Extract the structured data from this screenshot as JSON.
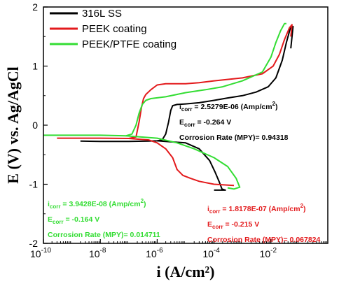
{
  "chart_data": {
    "type": "line",
    "xlabel": "i (A/cm²)",
    "ylabel": "E (V) vs. Ag/AgCl",
    "xscale": "log",
    "xlim": [
      1e-10,
      1
    ],
    "ylim": [
      -2,
      2
    ],
    "x_ticks": [
      {
        "value": 1e-10,
        "label": "10-10"
      },
      {
        "value": 1e-08,
        "label": "10-8"
      },
      {
        "value": 1e-06,
        "label": "10-6"
      },
      {
        "value": 0.0001,
        "label": "10-4"
      },
      {
        "value": 0.01,
        "label": "10-2"
      }
    ],
    "y_ticks": [
      {
        "value": 2,
        "label": "2"
      },
      {
        "value": 1,
        "label": "1"
      },
      {
        "value": 0,
        "label": "0"
      },
      {
        "value": -1,
        "label": "-1"
      },
      {
        "value": -2,
        "label": "-2"
      }
    ],
    "legend_position": "top-left",
    "series": [
      {
        "name": "316L SS",
        "color": "#000000",
        "points": [
          [
            2e-09,
            -0.27
          ],
          [
            1e-08,
            -0.275
          ],
          [
            1e-07,
            -0.275
          ],
          [
            5e-07,
            -0.27
          ],
          [
            1e-06,
            -0.265
          ],
          [
            1.5e-06,
            -0.25
          ],
          [
            2e-06,
            -0.15
          ],
          [
            2.5e-06,
            0.05
          ],
          [
            3e-06,
            0.25
          ],
          [
            3.5e-06,
            0.33
          ],
          [
            5e-06,
            0.35
          ],
          [
            1e-05,
            0.36
          ],
          [
            3e-05,
            0.38
          ],
          [
            0.0001,
            0.42
          ],
          [
            0.0003,
            0.46
          ],
          [
            0.001,
            0.5
          ],
          [
            0.003,
            0.56
          ],
          [
            0.008,
            0.65
          ],
          [
            0.015,
            0.8
          ],
          [
            0.025,
            1.1
          ],
          [
            0.035,
            1.4
          ],
          [
            0.05,
            1.67
          ],
          [
            0.06,
            1.67
          ],
          [
            0.05,
            1.3
          ]
        ],
        "points_lower": [
          [
            1e-06,
            -0.265
          ],
          [
            1e-05,
            -0.3
          ],
          [
            3e-05,
            -0.4
          ],
          [
            7e-05,
            -0.6
          ],
          [
            0.00011,
            -0.8
          ],
          [
            0.00015,
            -0.95
          ],
          [
            0.00019,
            -1.08
          ],
          [
            0.00025,
            -1.1
          ],
          [
            0.00015,
            -1.1
          ],
          [
            0.0001,
            -1.1
          ]
        ]
      },
      {
        "name": "PEEK coating",
        "color": "#e31a1c",
        "points": [
          [
            3e-10,
            -0.22
          ],
          [
            1e-08,
            -0.22
          ],
          [
            1e-07,
            -0.225
          ],
          [
            1.8e-07,
            -0.2
          ],
          [
            2.3e-07,
            0.05
          ],
          [
            2.8e-07,
            0.3
          ],
          [
            3.3e-07,
            0.45
          ],
          [
            4e-07,
            0.52
          ],
          [
            6e-07,
            0.6
          ],
          [
            1e-06,
            0.68
          ],
          [
            2e-06,
            0.7
          ],
          [
            1e-05,
            0.7
          ],
          [
            3e-05,
            0.72
          ],
          [
            0.0001,
            0.75
          ],
          [
            0.001,
            0.8
          ],
          [
            0.005,
            0.87
          ],
          [
            0.012,
            1.0
          ],
          [
            0.02,
            1.2
          ],
          [
            0.03,
            1.45
          ],
          [
            0.045,
            1.65
          ],
          [
            0.055,
            1.7
          ],
          [
            0.05,
            1.5
          ]
        ],
        "points_lower": [
          [
            1e-07,
            -0.225
          ],
          [
            5e-07,
            -0.25
          ],
          [
            1e-06,
            -0.3
          ],
          [
            2e-06,
            -0.4
          ],
          [
            3.5e-06,
            -0.55
          ],
          [
            5e-06,
            -0.75
          ],
          [
            8e-06,
            -0.85
          ],
          [
            1.5e-05,
            -0.9
          ],
          [
            3e-05,
            -0.95
          ],
          [
            0.0001,
            -1.0
          ],
          [
            0.0005,
            -1.02
          ]
        ]
      },
      {
        "name": "PEEK/PTFE coating",
        "color": "#33dd33",
        "points": [
          [
            1e-10,
            -0.17
          ],
          [
            1e-08,
            -0.17
          ],
          [
            8e-08,
            -0.18
          ],
          [
            1.3e-07,
            -0.15
          ],
          [
            1.8e-07,
            0.0
          ],
          [
            2.3e-07,
            0.2
          ],
          [
            3e-07,
            0.35
          ],
          [
            4e-07,
            0.42
          ],
          [
            6e-07,
            0.45
          ],
          [
            2e-06,
            0.48
          ],
          [
            1e-05,
            0.55
          ],
          [
            5e-05,
            0.6
          ],
          [
            0.0002,
            0.65
          ],
          [
            0.001,
            0.75
          ],
          [
            0.005,
            0.9
          ],
          [
            0.01,
            1.15
          ],
          [
            0.015,
            1.4
          ],
          [
            0.022,
            1.6
          ],
          [
            0.03,
            1.72
          ],
          [
            0.035,
            1.72
          ]
        ],
        "points_lower": [
          [
            8e-08,
            -0.18
          ],
          [
            1e-06,
            -0.22
          ],
          [
            5e-06,
            -0.3
          ],
          [
            2e-05,
            -0.4
          ],
          [
            0.0001,
            -0.55
          ],
          [
            0.0003,
            -0.7
          ],
          [
            0.0006,
            -0.9
          ],
          [
            0.0008,
            -1.05
          ],
          [
            0.0005,
            -1.08
          ],
          [
            0.0003,
            -1.06
          ]
        ]
      }
    ]
  },
  "annotations": [
    {
      "id": "ss",
      "color": "#000000",
      "lines": [
        "i",
        "corr",
        " = 2.5279E-06 (Amp/cm",
        "2",
        ")"
      ],
      "ecorr": [
        "E",
        "corr",
        " = -0.264 V"
      ],
      "rate": "Corrosion Rate (MPY)= 0.94318"
    },
    {
      "id": "peek",
      "color": "#e31a1c",
      "lines": [
        "i",
        "corr",
        " = 1.8178E-07 (Amp/cm",
        "2",
        ")"
      ],
      "ecorr": [
        "E",
        "corr",
        " = -0.215 V"
      ],
      "rate": "Corrosion Rate (MPY)= 0.067824"
    },
    {
      "id": "ptfe",
      "color": "#33dd33",
      "lines": [
        "i",
        "corr",
        " = 3.9428E-08 (Amp/cm",
        "2",
        ")"
      ],
      "ecorr": [
        "E",
        "corr",
        " = -0.164 V"
      ],
      "rate": "Corrosion Rate (MPY)= 0.014711"
    }
  ]
}
